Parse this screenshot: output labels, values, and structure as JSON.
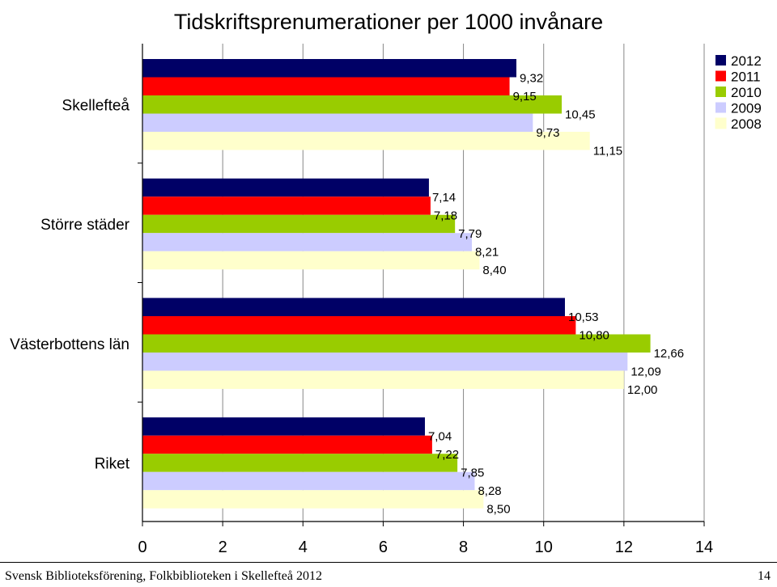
{
  "chart_data": {
    "type": "bar",
    "orientation": "horizontal",
    "title": "Tidskriftsprenumerationer per 1000 invånare",
    "categories": [
      "Skellefteå",
      "Större städer",
      "Västerbottens län",
      "Riket"
    ],
    "series": [
      {
        "name": "2012",
        "color": "#000066",
        "values": [
          9.32,
          7.14,
          10.53,
          7.04
        ],
        "labels": [
          "9,32",
          "7,14",
          "10,53",
          "7,04"
        ]
      },
      {
        "name": "2011",
        "color": "#ff0000",
        "values": [
          9.15,
          7.18,
          10.8,
          7.22
        ],
        "labels": [
          "9,15",
          "7,18",
          "10,80",
          "7,22"
        ]
      },
      {
        "name": "2010",
        "color": "#99cc00",
        "values": [
          10.45,
          7.79,
          12.66,
          7.85
        ],
        "labels": [
          "10,45",
          "7,79",
          "12,66",
          "7,85"
        ]
      },
      {
        "name": "2009",
        "color": "#ccccff",
        "values": [
          9.73,
          8.21,
          12.09,
          8.28
        ],
        "labels": [
          "9,73",
          "8,21",
          "12,09",
          "8,28"
        ]
      },
      {
        "name": "2008",
        "color": "#ffffcc",
        "values": [
          11.15,
          8.4,
          12.0,
          8.5
        ],
        "labels": [
          "11,15",
          "8,40",
          "12,00",
          "8,50"
        ]
      }
    ],
    "xlim": [
      0,
      14
    ],
    "xticks": [
      "0",
      "2",
      "4",
      "6",
      "8",
      "10",
      "12",
      "14"
    ],
    "grid": "vertical",
    "legend": "top-right"
  },
  "footer": {
    "left": "Svensk Biblioteksförening, Folkbiblioteken i Skellefteå 2012",
    "right": "14"
  }
}
